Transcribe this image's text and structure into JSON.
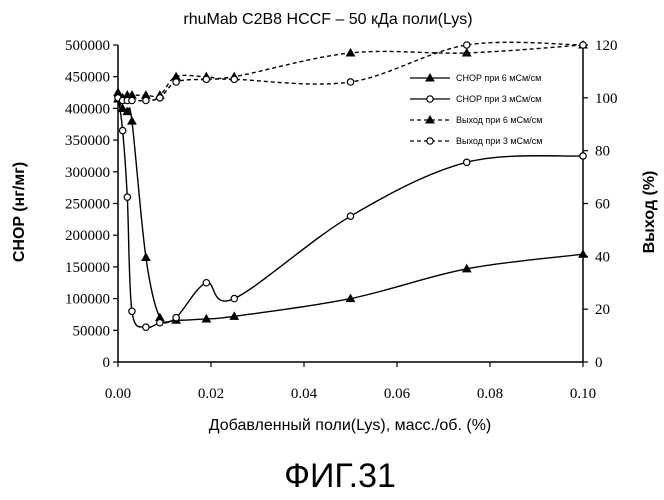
{
  "chart_data": {
    "type": "line",
    "title": "rhuMab C2B8 HCCF – 50 кДа поли(Lys)",
    "xlabel": "Добавленный поли(Lys), масс./об. (%)",
    "ylabel": "CHOP (нг/мг)",
    "y2label": "Выход (%)",
    "xlim": [
      0,
      0.1
    ],
    "ylim": [
      0,
      500000
    ],
    "y2lim": [
      0,
      120
    ],
    "x_ticks": [
      "0.00",
      "0.02",
      "0.04",
      "0.06",
      "0.08",
      "0.10"
    ],
    "y_ticks": [
      "0",
      "50000",
      "100000",
      "150000",
      "200000",
      "250000",
      "300000",
      "350000",
      "400000",
      "450000",
      "500000"
    ],
    "y2_ticks": [
      "0",
      "20",
      "40",
      "60",
      "80",
      "100",
      "120"
    ],
    "legend_position": "right",
    "series": [
      {
        "name": "CHOP при 6 мСм/см",
        "axis": "left",
        "style": "solid",
        "marker": "triangle",
        "x": [
          0,
          0.001,
          0.002,
          0.003,
          0.006,
          0.009,
          0.0125,
          0.019,
          0.025,
          0.05,
          0.075,
          0.1
        ],
        "y": [
          415000,
          400000,
          395000,
          380000,
          165000,
          70000,
          66000,
          68000,
          72000,
          100000,
          147000,
          170000
        ]
      },
      {
        "name": "CHOP при 3 мСм/см",
        "axis": "left",
        "style": "solid",
        "marker": "circle",
        "x": [
          0,
          0.001,
          0.002,
          0.003,
          0.006,
          0.009,
          0.0125,
          0.019,
          0.025,
          0.05,
          0.075,
          0.1
        ],
        "y": [
          420000,
          365000,
          260000,
          80000,
          55000,
          62000,
          70000,
          125000,
          100000,
          230000,
          315000,
          325000
        ]
      },
      {
        "name": "Выход при 6 мСм/см",
        "axis": "right",
        "style": "dashed",
        "marker": "triangle",
        "x": [
          0,
          0.001,
          0.002,
          0.003,
          0.006,
          0.009,
          0.0125,
          0.019,
          0.025,
          0.05,
          0.075,
          0.1
        ],
        "y": [
          102,
          100,
          101,
          101,
          101,
          101,
          108,
          108,
          108,
          117,
          117,
          120
        ]
      },
      {
        "name": "Выход при 3 мСм/см",
        "axis": "right",
        "style": "dashed",
        "marker": "circle",
        "x": [
          0,
          0.001,
          0.002,
          0.003,
          0.006,
          0.009,
          0.0125,
          0.019,
          0.025,
          0.05,
          0.075,
          0.1
        ],
        "y": [
          100,
          99,
          99,
          99,
          99,
          100,
          106,
          107,
          107,
          106,
          120,
          120
        ]
      }
    ]
  },
  "figure_caption": "ФИГ.31"
}
